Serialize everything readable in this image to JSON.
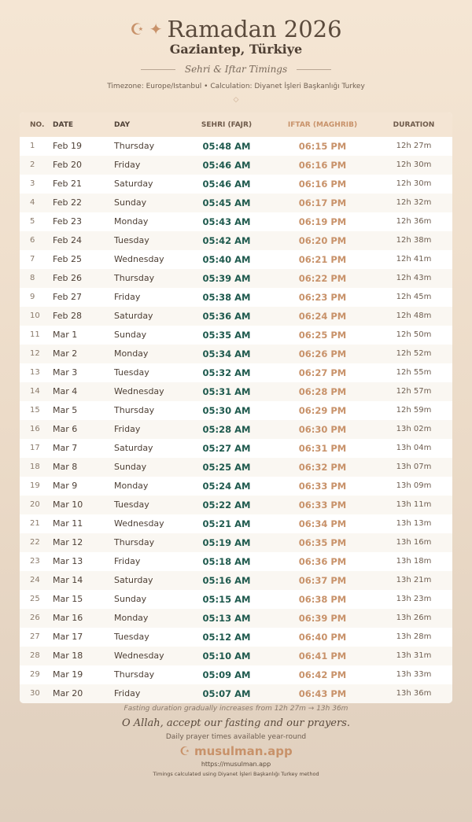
{
  "header": {
    "icons": [
      "crescent-star-icon",
      "sparkle-icon"
    ],
    "title": "Ramadan 2026",
    "city": "Gaziantep, Türkiye",
    "subtitle": "Sehri & Iftar Timings",
    "info": "Timezone: Europe/Istanbul • Calculation: Diyanet İşleri Başkanlığı Turkey",
    "ornament": "◇"
  },
  "colors": {
    "sehri": "#1f5a4e",
    "iftar": "#c8926a",
    "header_bg": "#f4e5d4"
  },
  "table": {
    "columns": [
      "NO.",
      "DATE",
      "DAY",
      "SEHRI (FAJR)",
      "IFTAR (MAGHRIB)",
      "DURATION"
    ],
    "rows": [
      [
        "1",
        "Feb 19",
        "Thursday",
        "05:48 AM",
        "06:15 PM",
        "12h 27m"
      ],
      [
        "2",
        "Feb 20",
        "Friday",
        "05:46 AM",
        "06:16 PM",
        "12h 30m"
      ],
      [
        "3",
        "Feb 21",
        "Saturday",
        "05:46 AM",
        "06:16 PM",
        "12h 30m"
      ],
      [
        "4",
        "Feb 22",
        "Sunday",
        "05:45 AM",
        "06:17 PM",
        "12h 32m"
      ],
      [
        "5",
        "Feb 23",
        "Monday",
        "05:43 AM",
        "06:19 PM",
        "12h 36m"
      ],
      [
        "6",
        "Feb 24",
        "Tuesday",
        "05:42 AM",
        "06:20 PM",
        "12h 38m"
      ],
      [
        "7",
        "Feb 25",
        "Wednesday",
        "05:40 AM",
        "06:21 PM",
        "12h 41m"
      ],
      [
        "8",
        "Feb 26",
        "Thursday",
        "05:39 AM",
        "06:22 PM",
        "12h 43m"
      ],
      [
        "9",
        "Feb 27",
        "Friday",
        "05:38 AM",
        "06:23 PM",
        "12h 45m"
      ],
      [
        "10",
        "Feb 28",
        "Saturday",
        "05:36 AM",
        "06:24 PM",
        "12h 48m"
      ],
      [
        "11",
        "Mar 1",
        "Sunday",
        "05:35 AM",
        "06:25 PM",
        "12h 50m"
      ],
      [
        "12",
        "Mar 2",
        "Monday",
        "05:34 AM",
        "06:26 PM",
        "12h 52m"
      ],
      [
        "13",
        "Mar 3",
        "Tuesday",
        "05:32 AM",
        "06:27 PM",
        "12h 55m"
      ],
      [
        "14",
        "Mar 4",
        "Wednesday",
        "05:31 AM",
        "06:28 PM",
        "12h 57m"
      ],
      [
        "15",
        "Mar 5",
        "Thursday",
        "05:30 AM",
        "06:29 PM",
        "12h 59m"
      ],
      [
        "16",
        "Mar 6",
        "Friday",
        "05:28 AM",
        "06:30 PM",
        "13h 02m"
      ],
      [
        "17",
        "Mar 7",
        "Saturday",
        "05:27 AM",
        "06:31 PM",
        "13h 04m"
      ],
      [
        "18",
        "Mar 8",
        "Sunday",
        "05:25 AM",
        "06:32 PM",
        "13h 07m"
      ],
      [
        "19",
        "Mar 9",
        "Monday",
        "05:24 AM",
        "06:33 PM",
        "13h 09m"
      ],
      [
        "20",
        "Mar 10",
        "Tuesday",
        "05:22 AM",
        "06:33 PM",
        "13h 11m"
      ],
      [
        "21",
        "Mar 11",
        "Wednesday",
        "05:21 AM",
        "06:34 PM",
        "13h 13m"
      ],
      [
        "22",
        "Mar 12",
        "Thursday",
        "05:19 AM",
        "06:35 PM",
        "13h 16m"
      ],
      [
        "23",
        "Mar 13",
        "Friday",
        "05:18 AM",
        "06:36 PM",
        "13h 18m"
      ],
      [
        "24",
        "Mar 14",
        "Saturday",
        "05:16 AM",
        "06:37 PM",
        "13h 21m"
      ],
      [
        "25",
        "Mar 15",
        "Sunday",
        "05:15 AM",
        "06:38 PM",
        "13h 23m"
      ],
      [
        "26",
        "Mar 16",
        "Monday",
        "05:13 AM",
        "06:39 PM",
        "13h 26m"
      ],
      [
        "27",
        "Mar 17",
        "Tuesday",
        "05:12 AM",
        "06:40 PM",
        "13h 28m"
      ],
      [
        "28",
        "Mar 18",
        "Wednesday",
        "05:10 AM",
        "06:41 PM",
        "13h 31m"
      ],
      [
        "29",
        "Mar 19",
        "Thursday",
        "05:09 AM",
        "06:42 PM",
        "13h 33m"
      ],
      [
        "30",
        "Mar 20",
        "Friday",
        "05:07 AM",
        "06:43 PM",
        "13h 36m"
      ]
    ]
  },
  "footer": {
    "note": "Fasting duration gradually increases from 12h 27m → 13h 36m",
    "dua": "O Allah, accept our fasting and our prayers.",
    "tagline": "Daily prayer times available year-round",
    "brand": "musulman.app",
    "url": "https://musulman.app",
    "method": "Timings calculated using Diyanet İşleri Başkanlığı Turkey method"
  }
}
